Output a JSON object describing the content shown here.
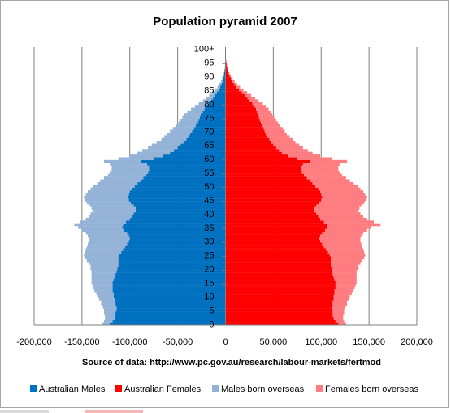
{
  "chart_data": {
    "type": "bar",
    "orientation": "horizontal-pyramid",
    "stacked": true,
    "title": "Population pyramid 2007",
    "source_note": "Source of data:  http://www.pc.gov.au/research/labour-markets/fertmod",
    "xlim": [
      -200000,
      200000
    ],
    "x_ticks": [
      -200000,
      -150000,
      -100000,
      -50000,
      0,
      50000,
      100000,
      150000,
      200000
    ],
    "x_tick_labels": [
      "-200,000",
      "-150,000",
      "-100,000",
      "-50,000",
      "0",
      "50,000",
      "100,000",
      "150,000",
      "200,000"
    ],
    "y_tick_labels": [
      "0",
      "5",
      "10",
      "15",
      "20",
      "25",
      "30",
      "35",
      "40",
      "45",
      "50",
      "55",
      "60",
      "65",
      "70",
      "75",
      "80",
      "85",
      "90",
      "95",
      "100+"
    ],
    "gridlines": "vertical",
    "legend_position": "bottom",
    "age_start": 0,
    "age_step": 1,
    "series": [
      {
        "name": "Australian Males",
        "color": "#0070c0",
        "side": "left",
        "layer": "inner",
        "values": [
          -121000,
          -118000,
          -116000,
          -115000,
          -115000,
          -114000,
          -114000,
          -115000,
          -115000,
          -116000,
          -117000,
          -117000,
          -118000,
          -118000,
          -118000,
          -118000,
          -117000,
          -116000,
          -115000,
          -114000,
          -113000,
          -112000,
          -112000,
          -112000,
          -112000,
          -111000,
          -109000,
          -107000,
          -105000,
          -103000,
          -101000,
          -100000,
          -101000,
          -103000,
          -106000,
          -108000,
          -107000,
          -104000,
          -100000,
          -98000,
          -96000,
          -94000,
          -94000,
          -96000,
          -99000,
          -101000,
          -102000,
          -101000,
          -100000,
          -98000,
          -95000,
          -92000,
          -89000,
          -86000,
          -83000,
          -81000,
          -80000,
          -80000,
          -82000,
          -88000,
          -75000,
          -65000,
          -58000,
          -54000,
          -50000,
          -47000,
          -44000,
          -41000,
          -39000,
          -37000,
          -35000,
          -33000,
          -31000,
          -29000,
          -28000,
          -27000,
          -26000,
          -24000,
          -22000,
          -20000,
          -18000,
          -15000,
          -13000,
          -11000,
          -9000,
          -7000,
          -5500,
          -4200,
          -3200,
          -2400,
          -1800,
          -1300,
          -900,
          -600,
          -400,
          -250,
          -150,
          -90,
          -50,
          -30,
          -50
        ]
      },
      {
        "name": "Males born overseas",
        "color": "#95b3d7",
        "side": "left",
        "layer": "outer",
        "values": [
          -8000,
          -9000,
          -10000,
          -11000,
          -12000,
          -13000,
          -14000,
          -15000,
          -15000,
          -16000,
          -17000,
          -18000,
          -19000,
          -20000,
          -21000,
          -22000,
          -23000,
          -24000,
          -25000,
          -26000,
          -28000,
          -29000,
          -31000,
          -33000,
          -35000,
          -37000,
          -38000,
          -39000,
          -40000,
          -41000,
          -42000,
          -43000,
          -43000,
          -43000,
          -44000,
          -46000,
          -51000,
          -48000,
          -46000,
          -45000,
          -45000,
          -45000,
          -46000,
          -46000,
          -46000,
          -46000,
          -46000,
          -45000,
          -44000,
          -43000,
          -43000,
          -42000,
          -42000,
          -41000,
          -40000,
          -40000,
          -39000,
          -39000,
          -39000,
          -39000,
          -37000,
          -35000,
          -34000,
          -33000,
          -31000,
          -30000,
          -28000,
          -26000,
          -25000,
          -24000,
          -23000,
          -22000,
          -21000,
          -20000,
          -19000,
          -18000,
          -17000,
          -16000,
          -14000,
          -12000,
          -10000,
          -8500,
          -7000,
          -6000,
          -4800,
          -3800,
          -2900,
          -2200,
          -1600,
          -1100,
          -800,
          -550,
          -350,
          -220,
          -140,
          -90,
          -50,
          -30,
          -20,
          -10,
          -20
        ]
      },
      {
        "name": "Australian Females",
        "color": "#ff0000",
        "side": "right",
        "layer": "inner",
        "values": [
          118000,
          115000,
          113000,
          112000,
          112000,
          111000,
          111000,
          112000,
          112000,
          113000,
          113000,
          114000,
          114000,
          115000,
          115000,
          115000,
          114000,
          113000,
          112000,
          111000,
          111000,
          110000,
          110000,
          110000,
          110000,
          109000,
          107000,
          105000,
          103000,
          101000,
          99000,
          98000,
          99000,
          101000,
          104000,
          106000,
          106000,
          103000,
          99000,
          97000,
          95000,
          93000,
          93000,
          95000,
          98000,
          100000,
          101000,
          100000,
          99000,
          97000,
          94000,
          91000,
          88000,
          85000,
          82000,
          80000,
          79000,
          79000,
          81000,
          88000,
          75000,
          65000,
          59000,
          56000,
          53000,
          50000,
          48000,
          46000,
          44000,
          42000,
          41000,
          40000,
          38000,
          37000,
          36000,
          35000,
          34000,
          33000,
          32000,
          30000,
          28000,
          25000,
          23000,
          20000,
          17000,
          14000,
          11500,
          9200,
          7300,
          5700,
          4400,
          3300,
          2400,
          1700,
          1200,
          800,
          520,
          330,
          200,
          120,
          150
        ]
      },
      {
        "name": "Females born overseas",
        "color": "#ff7c80",
        "side": "right",
        "layer": "outer",
        "values": [
          8000,
          9000,
          10000,
          11000,
          12000,
          13000,
          14000,
          15000,
          15000,
          16000,
          17000,
          18000,
          19000,
          20000,
          21000,
          22000,
          23000,
          24000,
          25000,
          26000,
          28000,
          29000,
          31000,
          33000,
          35000,
          37000,
          38000,
          39000,
          40000,
          41000,
          42000,
          43000,
          43000,
          43000,
          44000,
          46000,
          56000,
          52000,
          49000,
          47000,
          46000,
          46000,
          47000,
          47000,
          47000,
          47000,
          47000,
          46000,
          45000,
          44000,
          44000,
          43000,
          42000,
          41000,
          40000,
          40000,
          39000,
          39000,
          39000,
          39000,
          36000,
          34000,
          32000,
          30000,
          28000,
          27000,
          25000,
          24000,
          23000,
          22000,
          21000,
          20000,
          19000,
          18000,
          17000,
          16000,
          15000,
          14000,
          13000,
          12000,
          11000,
          9500,
          8000,
          6800,
          5600,
          4600,
          3700,
          2900,
          2200,
          1700,
          1200,
          900,
          620,
          420,
          280,
          180,
          110,
          70,
          40,
          25,
          40
        ]
      }
    ]
  },
  "legend": [
    {
      "label": "Australian Males",
      "color": "#0070c0"
    },
    {
      "label": "Australian Females",
      "color": "#ff0000"
    },
    {
      "label": "Males born overseas",
      "color": "#95b3d7"
    },
    {
      "label": "Females born overseas",
      "color": "#ff7c80"
    }
  ]
}
